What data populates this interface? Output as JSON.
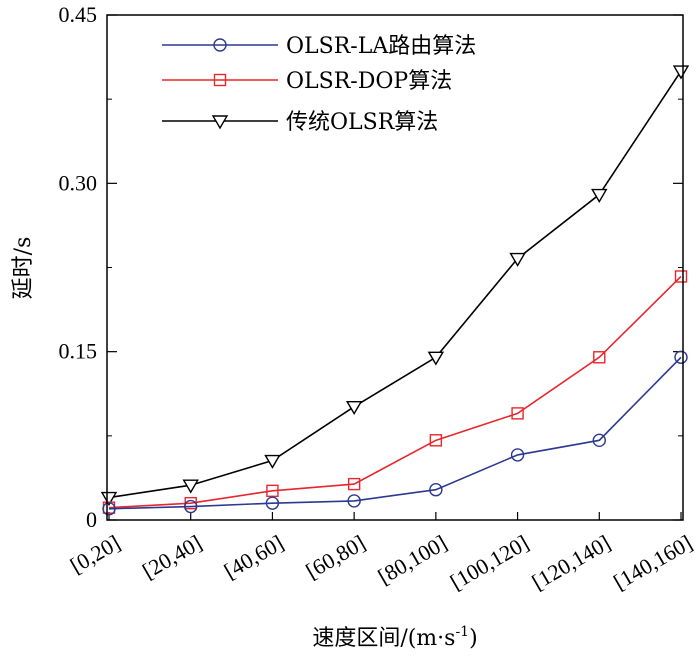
{
  "chart_data": {
    "type": "line",
    "title": "",
    "xlabel": "速度区间/(m·s",
    "xlabel_sup": "-1",
    "xlabel_close": ")",
    "ylabel": "延时/s",
    "categories": [
      "[0,20]",
      "[20,40]",
      "[40,60]",
      "[60,80]",
      "[80,100]",
      "[100,120]",
      "[120,140]",
      "[140,160]"
    ],
    "ylim": [
      0,
      0.45
    ],
    "yticks": [
      0,
      0.15,
      0.3,
      0.45
    ],
    "ytick_labels": [
      "0",
      "0.15",
      "0.30",
      "0.45"
    ],
    "legend_position": "top-left",
    "series": [
      {
        "name": "OLSR-LA路由算法",
        "color": "#2b3990",
        "marker": "circle",
        "values": [
          0.01,
          0.012,
          0.015,
          0.017,
          0.027,
          0.058,
          0.071,
          0.145
        ]
      },
      {
        "name": "OLSR-DOP算法",
        "color": "#e8262b",
        "marker": "square",
        "values": [
          0.011,
          0.015,
          0.026,
          0.032,
          0.071,
          0.095,
          0.145,
          0.217
        ]
      },
      {
        "name": "传统OLSR算法",
        "color": "#000000",
        "marker": "triangle-down",
        "values": [
          0.02,
          0.031,
          0.053,
          0.101,
          0.145,
          0.233,
          0.29,
          0.4
        ]
      }
    ]
  }
}
